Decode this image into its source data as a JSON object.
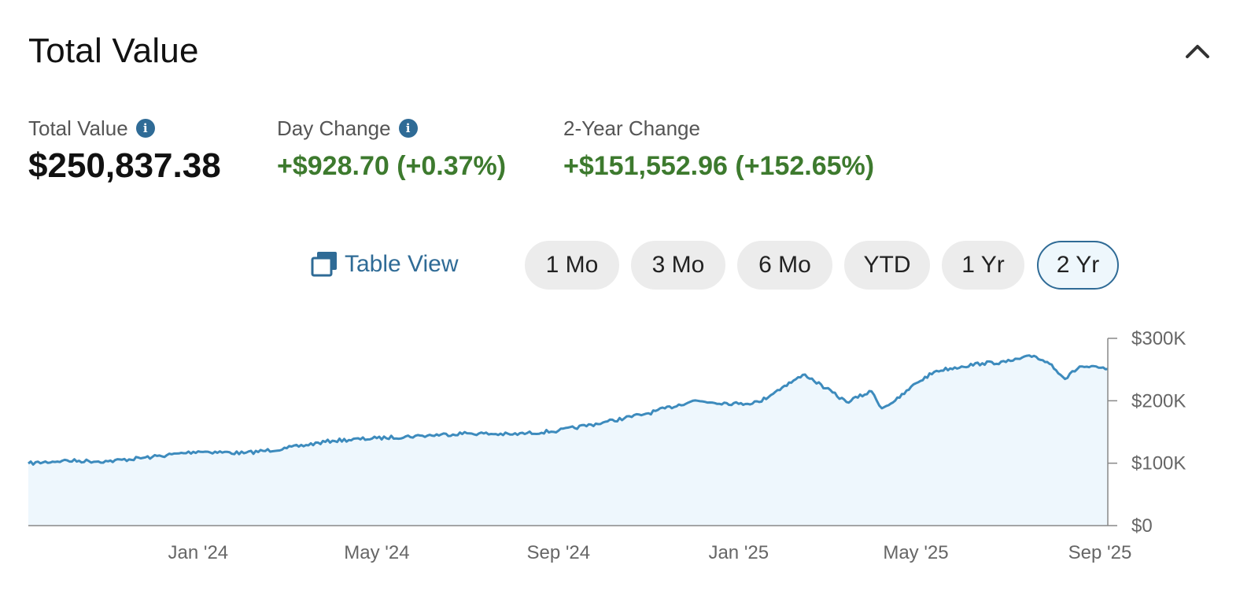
{
  "header": {
    "title": "Total Value"
  },
  "icons": {
    "collapse": "chevron-up-icon",
    "info": "info-icon",
    "table": "table-view-icon"
  },
  "stats": {
    "total_value": {
      "label": "Total Value",
      "value": "$250,837.38"
    },
    "day_change": {
      "label": "Day Change",
      "value": "+$928.70 (+0.37%)"
    },
    "two_year_change": {
      "label": "2-Year Change",
      "value": "+$151,552.96 (+152.65%)"
    }
  },
  "colors": {
    "accent": "#2f6b96",
    "positive": "#3d7a2e",
    "line": "#3d8bbd",
    "area": "#eef7fd"
  },
  "controls": {
    "table_view_label": "Table View",
    "ranges": [
      {
        "label": "1 Mo",
        "active": false
      },
      {
        "label": "3 Mo",
        "active": false
      },
      {
        "label": "6 Mo",
        "active": false
      },
      {
        "label": "YTD",
        "active": false
      },
      {
        "label": "1 Yr",
        "active": false
      },
      {
        "label": "2 Yr",
        "active": true
      }
    ]
  },
  "chart_data": {
    "type": "area",
    "x_tick_labels": [
      "Jan '24",
      "May '24",
      "Sep '24",
      "Jan '25",
      "May '25",
      "Sep '25"
    ],
    "y_tick_labels": [
      "$0",
      "$100K",
      "$200K",
      "$300K"
    ],
    "ylim": [
      0,
      300000
    ],
    "xlim": [
      "2023-09-08",
      "2025-09-08"
    ],
    "x": [
      "2023-09-08",
      "2023-10-01",
      "2023-11-01",
      "2023-12-01",
      "2024-01-01",
      "2024-02-01",
      "2024-03-01",
      "2024-04-01",
      "2024-05-01",
      "2024-06-01",
      "2024-07-01",
      "2024-08-01",
      "2024-09-01",
      "2024-10-01",
      "2024-11-01",
      "2024-12-01",
      "2025-01-01",
      "2025-01-15",
      "2025-02-01",
      "2025-02-15",
      "2025-03-01",
      "2025-03-15",
      "2025-04-01",
      "2025-04-08",
      "2025-04-20",
      "2025-05-01",
      "2025-05-15",
      "2025-06-01",
      "2025-06-15",
      "2025-07-01",
      "2025-07-20",
      "2025-08-01",
      "2025-08-10",
      "2025-08-20",
      "2025-09-08"
    ],
    "series": [
      {
        "values": [
          99500,
          104000,
          103000,
          110000,
          119000,
          116000,
          124000,
          136000,
          140000,
          144000,
          148000,
          146000,
          152000,
          165000,
          180000,
          200000,
          195000,
          198000,
          224000,
          242000,
          220000,
          198000,
          215000,
          188000,
          205000,
          228000,
          248000,
          255000,
          260000,
          262000,
          272000,
          258000,
          235000,
          255000,
          251000
        ]
      }
    ]
  }
}
